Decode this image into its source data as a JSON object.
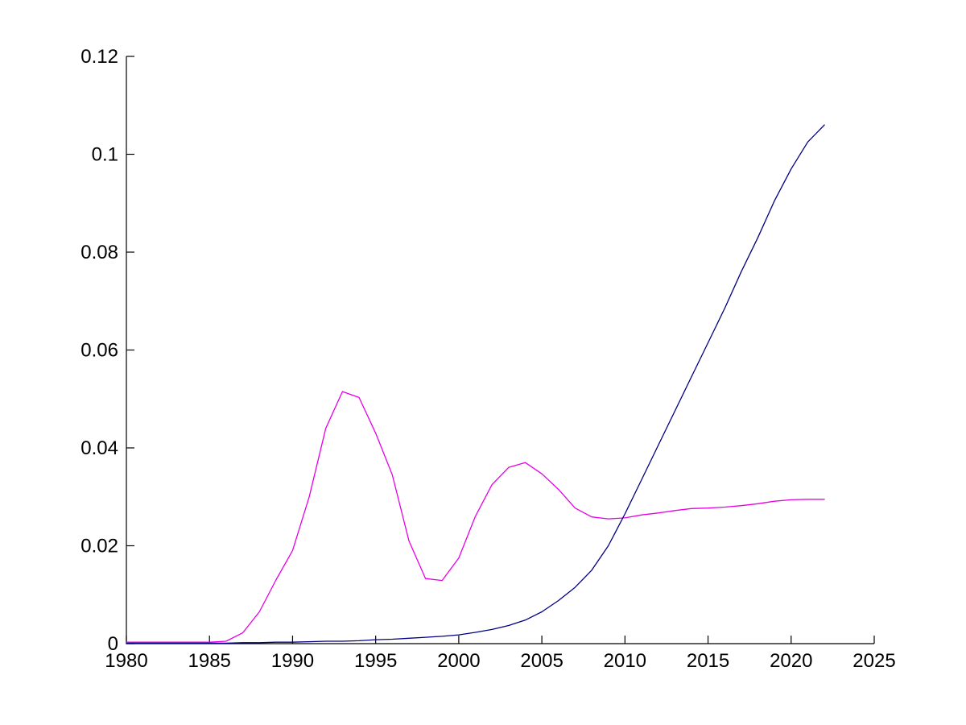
{
  "figure": {
    "background": "#ffffff",
    "axis_color": "#000000",
    "tick_label_color": "#000000"
  },
  "chart_data": {
    "type": "line",
    "title": "",
    "xlabel": "",
    "ylabel": "",
    "xlim": [
      1980,
      2025
    ],
    "ylim": [
      0,
      0.12
    ],
    "grid": false,
    "legend": "none",
    "x_ticks": [
      1980,
      1985,
      1990,
      1995,
      2000,
      2005,
      2010,
      2015,
      2020,
      2025
    ],
    "x_tick_labels": [
      "1980",
      "1985",
      "1990",
      "1995",
      "2000",
      "2005",
      "2010",
      "2015",
      "2020",
      "2025"
    ],
    "y_ticks": [
      0,
      0.02,
      0.04,
      0.06,
      0.08,
      0.1,
      0.12
    ],
    "y_tick_labels": [
      "0",
      "0.02",
      "0.04",
      "0.06",
      "0.08",
      "0.1",
      "0.12"
    ],
    "x": [
      1980,
      1981,
      1982,
      1983,
      1984,
      1985,
      1986,
      1987,
      1988,
      1989,
      1990,
      1991,
      1992,
      1993,
      1994,
      1995,
      1996,
      1997,
      1998,
      1999,
      2000,
      2001,
      2002,
      2003,
      2004,
      2005,
      2006,
      2007,
      2008,
      2009,
      2010,
      2011,
      2012,
      2013,
      2014,
      2015,
      2016,
      2017,
      2018,
      2019,
      2020,
      2021,
      2022
    ],
    "series": [
      {
        "name": "magenta-line",
        "color": "#E600E6",
        "values": [
          0.0003,
          0.0003,
          0.0003,
          0.0003,
          0.0003,
          0.0003,
          0.0005,
          0.0022,
          0.0065,
          0.013,
          0.019,
          0.03,
          0.044,
          0.0515,
          0.0503,
          0.043,
          0.0345,
          0.021,
          0.0133,
          0.0129,
          0.0175,
          0.026,
          0.0325,
          0.036,
          0.037,
          0.0347,
          0.0315,
          0.0277,
          0.0259,
          0.0255,
          0.0257,
          0.0263,
          0.0267,
          0.0272,
          0.0276,
          0.0277,
          0.0279,
          0.0282,
          0.0286,
          0.0291,
          0.0294,
          0.0295,
          0.0295
        ]
      },
      {
        "name": "dark-blue-line",
        "color": "#000080",
        "values": [
          0.0001,
          0.0001,
          0.0001,
          0.0001,
          0.0001,
          0.0001,
          0.0001,
          0.0002,
          0.0002,
          0.0003,
          0.0003,
          0.0004,
          0.0005,
          0.0005,
          0.0006,
          0.0008,
          0.0009,
          0.0011,
          0.0013,
          0.0015,
          0.0018,
          0.0023,
          0.0029,
          0.0037,
          0.0048,
          0.0065,
          0.0088,
          0.0115,
          0.015,
          0.02,
          0.0265,
          0.0335,
          0.0405,
          0.0475,
          0.0545,
          0.0615,
          0.0685,
          0.076,
          0.083,
          0.0905,
          0.097,
          0.1025,
          0.106
        ]
      }
    ]
  }
}
